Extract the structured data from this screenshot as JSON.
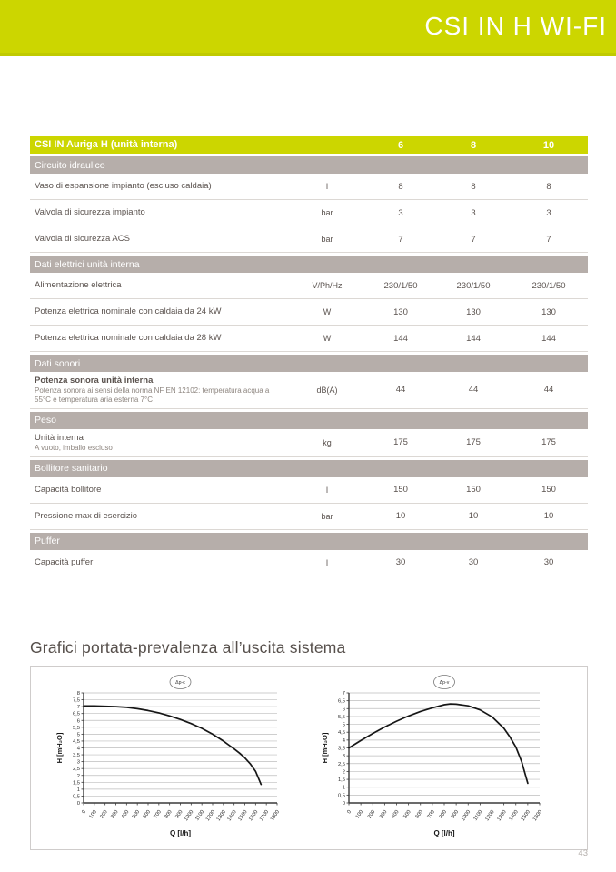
{
  "page": {
    "header_title": "CSI IN H WI-FI",
    "section_title": "Grafici portata-prevalenza all’uscita sistema",
    "page_number": "43"
  },
  "colors": {
    "lime": "#ccd600",
    "lime_dark": "#c0ca00",
    "section_gray": "#b6aeaa",
    "text": "#5a524e",
    "row_line": "#dcd8d4"
  },
  "table": {
    "title": "CSI IN Auriga H (unità interna)",
    "columns": [
      "6",
      "8",
      "10"
    ],
    "sections": [
      {
        "header": "Circuito idraulico",
        "rows": [
          {
            "label": "Vaso di espansione impianto (escluso caldaia)",
            "unit": "l",
            "values": [
              "8",
              "8",
              "8"
            ]
          },
          {
            "label": "Valvola di sicurezza impianto",
            "unit": "bar",
            "values": [
              "3",
              "3",
              "3"
            ]
          },
          {
            "label": "Valvola di sicurezza ACS",
            "unit": "bar",
            "values": [
              "7",
              "7",
              "7"
            ]
          }
        ]
      },
      {
        "header": "Dati elettrici unità interna",
        "rows": [
          {
            "label": "Alimentazione elettrica",
            "unit": "V/Ph/Hz",
            "values": [
              "230/1/50",
              "230/1/50",
              "230/1/50"
            ]
          },
          {
            "label": "Potenza elettrica nominale con caldaia da 24 kW",
            "unit": "W",
            "values": [
              "130",
              "130",
              "130"
            ]
          },
          {
            "label": "Potenza elettrica nominale con caldaia da 28 kW",
            "unit": "W",
            "values": [
              "144",
              "144",
              "144"
            ]
          }
        ]
      },
      {
        "header": "Dati sonori",
        "rows": [
          {
            "label": "Potenza sonora unità interna",
            "bold": true,
            "sublabel": "Potenza sonora ai sensi della norma NF EN 12102: temperatura acqua a 55°C e temperatura aria esterna 7°C",
            "unit": "dB(A)",
            "values": [
              "44",
              "44",
              "44"
            ]
          }
        ]
      },
      {
        "header": "Peso",
        "rows": [
          {
            "label": "Unità interna",
            "sublabel": "A vuoto, imballo escluso",
            "unit": "kg",
            "values": [
              "175",
              "175",
              "175"
            ]
          }
        ]
      },
      {
        "header": "Bollitore sanitario",
        "rows": [
          {
            "label": "Capacità bollitore",
            "unit": "l",
            "values": [
              "150",
              "150",
              "150"
            ]
          },
          {
            "label": "Pressione max di esercizio",
            "unit": "bar",
            "values": [
              "10",
              "10",
              "10"
            ]
          }
        ]
      },
      {
        "header": "Puffer",
        "rows": [
          {
            "label": "Capacità puffer",
            "unit": "l",
            "values": [
              "30",
              "30",
              "30"
            ]
          }
        ]
      }
    ]
  },
  "chart_data": [
    {
      "type": "line",
      "title": "Δp-c",
      "xlabel": "Q [l/h]",
      "ylabel": "H [mH₂O]",
      "xlim": [
        0,
        1800
      ],
      "xstep": 100,
      "ylim": [
        0,
        8
      ],
      "ystep": 0.5,
      "grid": true,
      "legend_position": "none",
      "x": [
        0,
        100,
        200,
        300,
        400,
        500,
        600,
        700,
        800,
        900,
        1000,
        1100,
        1200,
        1300,
        1400,
        1450,
        1500,
        1550,
        1600,
        1650
      ],
      "y": [
        7.05,
        7.05,
        7.03,
        7.0,
        6.95,
        6.85,
        6.72,
        6.55,
        6.33,
        6.07,
        5.77,
        5.42,
        5.0,
        4.5,
        3.93,
        3.62,
        3.28,
        2.85,
        2.3,
        1.35
      ]
    },
    {
      "type": "line",
      "title": "Δp-v",
      "xlabel": "Q [l/h]",
      "ylabel": "H [mH₂O]",
      "xlim": [
        0,
        1600
      ],
      "xstep": 100,
      "ylim": [
        0,
        7
      ],
      "ystep": 0.5,
      "grid": true,
      "legend_position": "none",
      "x": [
        0,
        100,
        200,
        300,
        400,
        500,
        600,
        700,
        800,
        850,
        900,
        1000,
        1100,
        1200,
        1300,
        1350,
        1400,
        1450,
        1500
      ],
      "y": [
        3.5,
        3.97,
        4.42,
        4.83,
        5.2,
        5.53,
        5.82,
        6.05,
        6.25,
        6.3,
        6.28,
        6.18,
        5.92,
        5.48,
        4.75,
        4.2,
        3.55,
        2.6,
        1.25
      ]
    }
  ]
}
